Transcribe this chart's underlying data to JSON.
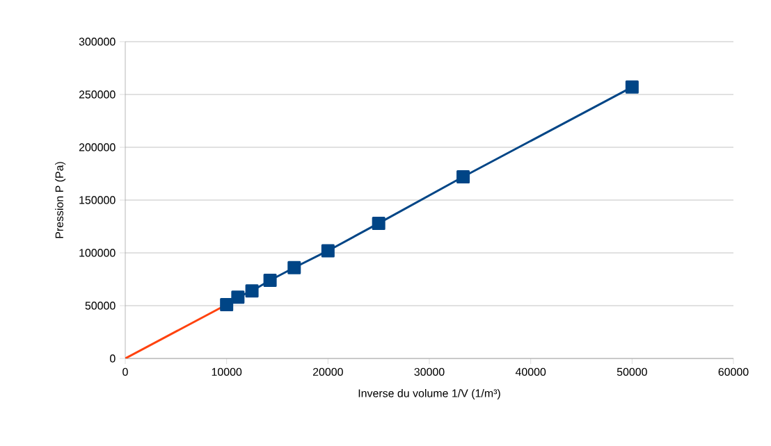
{
  "chart_data": {
    "type": "line",
    "xlabel": "Inverse du volume    1/V    (1/m³)",
    "ylabel": "Pression    P    (Pa)",
    "xlim": [
      0,
      60000
    ],
    "ylim": [
      0,
      300000
    ],
    "xticks": [
      0,
      10000,
      20000,
      30000,
      40000,
      50000,
      60000
    ],
    "yticks": [
      0,
      50000,
      100000,
      150000,
      200000,
      250000,
      300000
    ],
    "grid": "y",
    "series": [
      {
        "color": "#ff420e",
        "marker": "none",
        "x": [
          0,
          10000
        ],
        "values": [
          0,
          51000
        ]
      },
      {
        "color": "#004586",
        "marker": "square",
        "x": [
          10000,
          11111,
          12500,
          14286,
          16667,
          20000,
          25000,
          33333,
          50000
        ],
        "values": [
          51000,
          58000,
          64000,
          74000,
          86000,
          102000,
          128000,
          172000,
          257000
        ]
      }
    ]
  }
}
